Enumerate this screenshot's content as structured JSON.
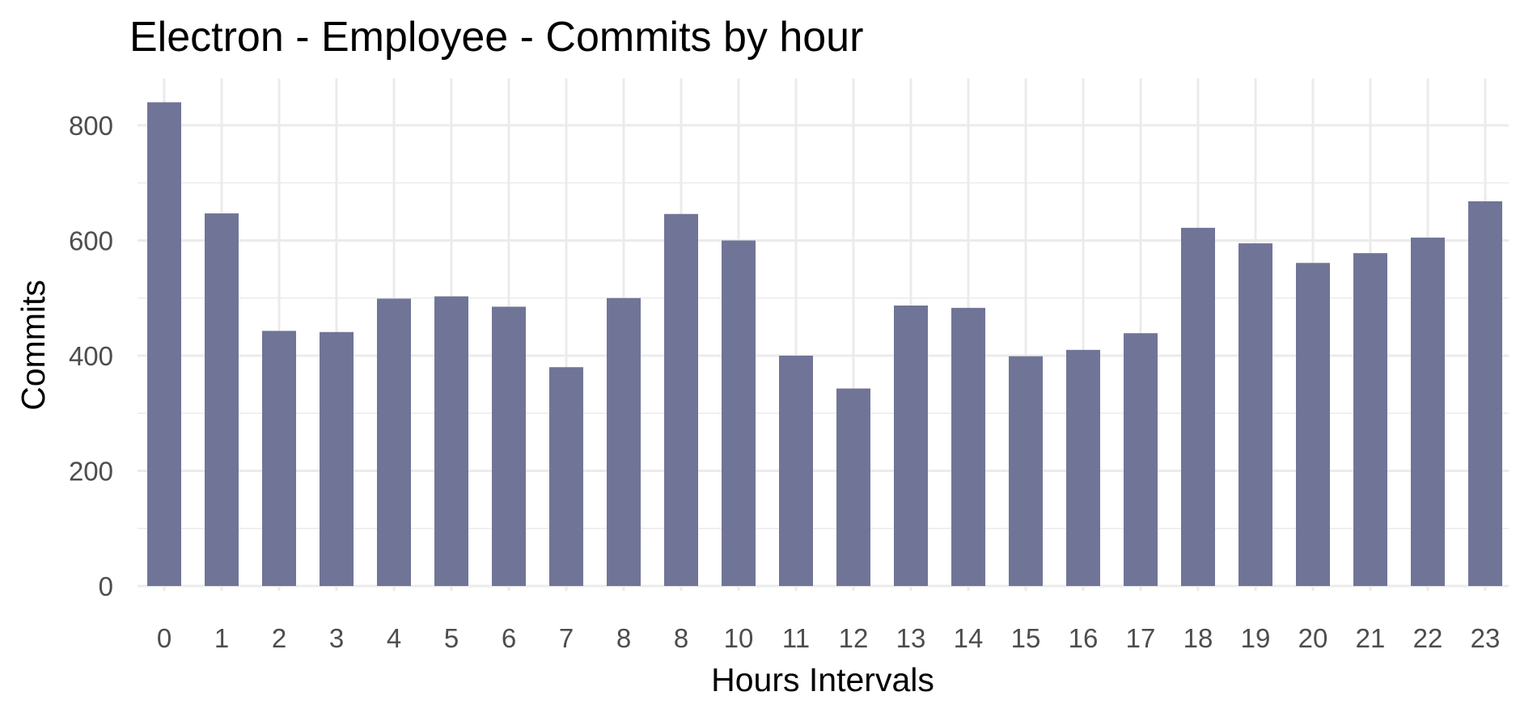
{
  "chart_data": {
    "type": "bar",
    "title": "Electron - Employee - Commits by hour",
    "xlabel": "Hours Intervals",
    "ylabel": "Commits",
    "categories": [
      "0",
      "1",
      "2",
      "3",
      "4",
      "5",
      "6",
      "7",
      "8",
      "8",
      "10",
      "11",
      "12",
      "13",
      "14",
      "15",
      "16",
      "17",
      "18",
      "19",
      "20",
      "21",
      "22",
      "23"
    ],
    "values": [
      840,
      647,
      443,
      441,
      499,
      503,
      485,
      380,
      500,
      646,
      600,
      400,
      343,
      487,
      483,
      399,
      410,
      439,
      622,
      595,
      561,
      578,
      605,
      668
    ],
    "ylim": [
      0,
      880
    ],
    "yticks": [
      0,
      200,
      400,
      600,
      800
    ],
    "grid": true,
    "legend": "none",
    "colors": {
      "bar": "#707597",
      "grid": "#ebebeb",
      "tick_text": "#4d4d4d",
      "label_text": "#000000"
    }
  }
}
